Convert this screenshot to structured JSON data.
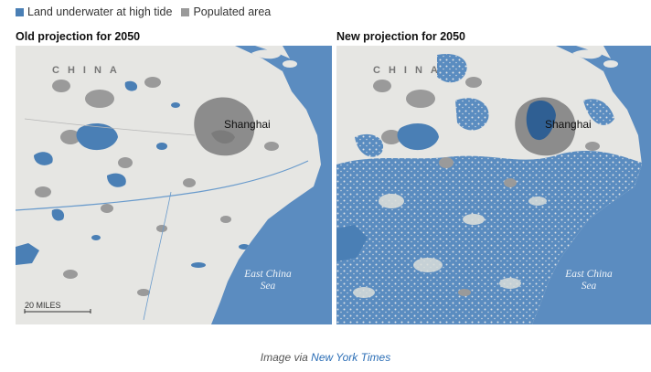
{
  "legend": {
    "items": [
      {
        "label": "Land underwater at high tide",
        "color": "#4a7fb5"
      },
      {
        "label": "Populated area",
        "color": "#9a9a9a"
      }
    ]
  },
  "panels": [
    {
      "title": "Old projection for 2050",
      "region_label": "CHINA",
      "city_label": "Shanghai",
      "sea_label_line1": "East China",
      "sea_label_line2": "Sea",
      "scale_label": "20 MILES",
      "flood_extent": "low"
    },
    {
      "title": "New projection for 2050",
      "region_label": "CHINA",
      "city_label": "Shanghai",
      "sea_label_line1": "East China",
      "sea_label_line2": "Sea",
      "flood_extent": "high"
    }
  ],
  "caption": {
    "prefix": "Image via",
    "link_text": "New York Times"
  },
  "colors": {
    "sea": "#5b8cc0",
    "land": "#e6e6e3",
    "flood": "#4a7fb5",
    "populated": "#9a9a9a",
    "urban_core": "#888888",
    "flood_dark": "#2f5f93"
  }
}
